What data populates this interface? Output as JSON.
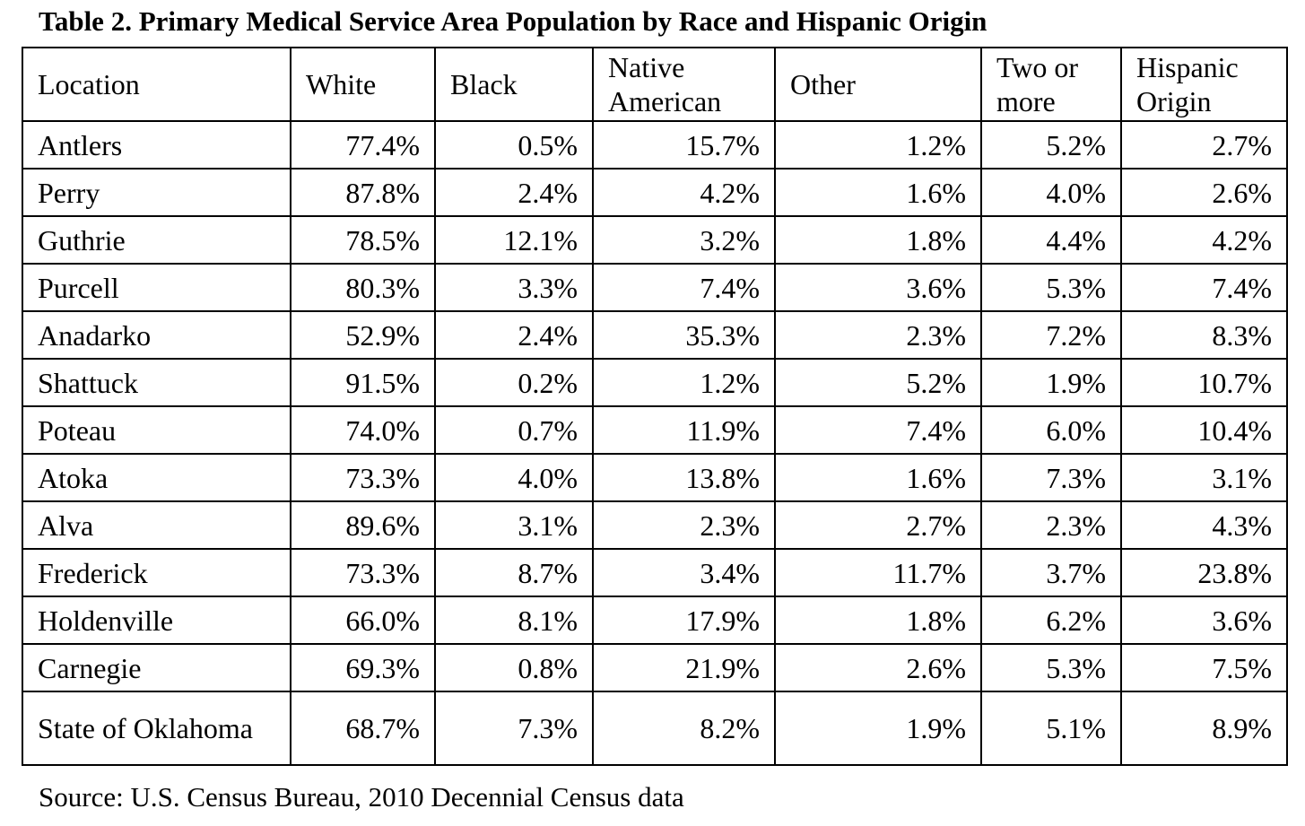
{
  "title": "Table 2.  Primary Medical Service Area Population by Race and Hispanic Origin",
  "table": {
    "headers": [
      "Location",
      "White",
      "Black",
      "Native American",
      "Other",
      "Two or more",
      "Hispanic Origin"
    ],
    "rows": [
      [
        "Antlers",
        "77.4%",
        "0.5%",
        "15.7%",
        "1.2%",
        "5.2%",
        "2.7%"
      ],
      [
        "Perry",
        "87.8%",
        "2.4%",
        "4.2%",
        "1.6%",
        "4.0%",
        "2.6%"
      ],
      [
        "Guthrie",
        "78.5%",
        "12.1%",
        "3.2%",
        "1.8%",
        "4.4%",
        "4.2%"
      ],
      [
        "Purcell",
        "80.3%",
        "3.3%",
        "7.4%",
        "3.6%",
        "5.3%",
        "7.4%"
      ],
      [
        "Anadarko",
        "52.9%",
        "2.4%",
        "35.3%",
        "2.3%",
        "7.2%",
        "8.3%"
      ],
      [
        "Shattuck",
        "91.5%",
        "0.2%",
        "1.2%",
        "5.2%",
        "1.9%",
        "10.7%"
      ],
      [
        "Poteau",
        "74.0%",
        "0.7%",
        "11.9%",
        "7.4%",
        "6.0%",
        "10.4%"
      ],
      [
        "Atoka",
        "73.3%",
        "4.0%",
        "13.8%",
        "1.6%",
        "7.3%",
        "3.1%"
      ],
      [
        "Alva",
        "89.6%",
        "3.1%",
        "2.3%",
        "2.7%",
        "2.3%",
        "4.3%"
      ],
      [
        "Frederick",
        "73.3%",
        "8.7%",
        "3.4%",
        "11.7%",
        "3.7%",
        "23.8%"
      ],
      [
        "Holdenville",
        "66.0%",
        "8.1%",
        "17.9%",
        "1.8%",
        "6.2%",
        "3.6%"
      ],
      [
        "Carnegie",
        "69.3%",
        "0.8%",
        "21.9%",
        "2.6%",
        "5.3%",
        "7.5%"
      ],
      [
        "State of Oklahoma",
        "68.7%",
        "7.3%",
        "8.2%",
        "1.9%",
        "5.1%",
        "8.9%"
      ]
    ]
  },
  "source": "Source: U.S. Census Bureau, 2010 Decennial Census data"
}
